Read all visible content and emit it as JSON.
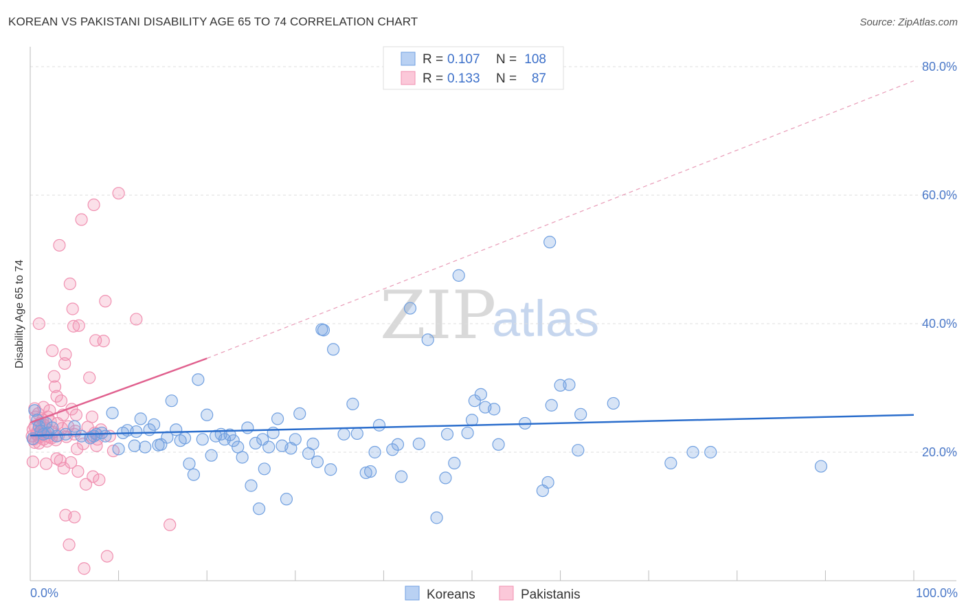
{
  "title": "KOREAN VS PAKISTANI DISABILITY AGE 65 TO 74 CORRELATION CHART",
  "source": "Source: ZipAtlas.com",
  "watermark": {
    "zip": "ZIP",
    "atlas": "atlas"
  },
  "chart_data": {
    "type": "scatter",
    "ylabel": "Disability Age 65 to 74",
    "xlim": [
      0,
      100
    ],
    "ylim": [
      0,
      83
    ],
    "x_tick_labels": [
      "0.0%",
      "100.0%"
    ],
    "y_ticks": [
      {
        "value": 20,
        "label": "20.0%"
      },
      {
        "value": 40,
        "label": "40.0%"
      },
      {
        "value": 60,
        "label": "60.0%"
      },
      {
        "value": 80,
        "label": "80.0%"
      }
    ],
    "legend": [
      {
        "r_label": "R =",
        "r_value": "0.107",
        "n_label": "N =",
        "n_value": "108"
      },
      {
        "r_label": "R =",
        "r_value": "0.133",
        "n_label": "N =",
        "n_value": "87"
      }
    ],
    "colors": {
      "koreans": "#6f9fe0",
      "pakistanis": "#f08fb0",
      "korean_line": "#2a6dcc",
      "pakistani_line": "#e0608e"
    },
    "series": [
      {
        "name": "Koreans",
        "trend": {
          "x0": 0,
          "y0": 22.6,
          "x1": 100,
          "y1": 25.8
        },
        "points": [
          [
            0.5,
            26.5
          ],
          [
            0.8,
            25
          ],
          [
            1,
            24
          ],
          [
            1.2,
            23.3
          ],
          [
            1.5,
            22.8
          ],
          [
            1.8,
            24.5
          ],
          [
            2,
            23
          ],
          [
            2.5,
            23.8
          ],
          [
            3,
            22.5
          ],
          [
            4,
            22.8
          ],
          [
            5,
            24
          ],
          [
            5.8,
            22.5
          ],
          [
            6.8,
            22.2
          ],
          [
            7.2,
            22.5
          ],
          [
            7.5,
            22.8
          ],
          [
            8.1,
            23
          ],
          [
            8.5,
            22.5
          ],
          [
            9.3,
            26.1
          ],
          [
            10,
            20.5
          ],
          [
            10.5,
            23
          ],
          [
            11,
            23.4
          ],
          [
            11.8,
            21
          ],
          [
            12,
            23.2
          ],
          [
            12.5,
            25.2
          ],
          [
            13,
            20.8
          ],
          [
            13.5,
            23.5
          ],
          [
            14,
            24.3
          ],
          [
            14.5,
            21.1
          ],
          [
            14.8,
            21.2
          ],
          [
            15.5,
            22.3
          ],
          [
            16,
            28
          ],
          [
            16.5,
            23.5
          ],
          [
            17,
            21.8
          ],
          [
            17.5,
            22.2
          ],
          [
            18,
            18.2
          ],
          [
            18.5,
            16.5
          ],
          [
            19,
            31.3
          ],
          [
            19.5,
            22
          ],
          [
            20,
            25.8
          ],
          [
            20.5,
            19.5
          ],
          [
            21,
            22.5
          ],
          [
            21.6,
            22.8
          ],
          [
            22,
            22
          ],
          [
            22.6,
            22.7
          ],
          [
            23,
            21.8
          ],
          [
            23.5,
            20.8
          ],
          [
            24,
            19.2
          ],
          [
            24.6,
            23.8
          ],
          [
            25,
            14.8
          ],
          [
            25.5,
            21.4
          ],
          [
            25.9,
            11.2
          ],
          [
            26.3,
            22
          ],
          [
            26.5,
            17.4
          ],
          [
            27,
            20.8
          ],
          [
            27.5,
            23
          ],
          [
            28,
            25.2
          ],
          [
            28.5,
            21
          ],
          [
            29,
            12.7
          ],
          [
            29.5,
            20.6
          ],
          [
            30,
            22
          ],
          [
            30.5,
            26
          ],
          [
            31.5,
            19.8
          ],
          [
            32,
            21.3
          ],
          [
            32.5,
            18.5
          ],
          [
            33,
            39.1
          ],
          [
            33.2,
            39
          ],
          [
            34,
            17.3
          ],
          [
            34.3,
            36
          ],
          [
            35.5,
            22.8
          ],
          [
            36.5,
            27.5
          ],
          [
            37,
            22.9
          ],
          [
            38,
            16.8
          ],
          [
            38.5,
            17
          ],
          [
            39,
            20
          ],
          [
            39.5,
            24.2
          ],
          [
            41,
            20.4
          ],
          [
            41.6,
            21.2
          ],
          [
            42,
            16.2
          ],
          [
            43,
            42.4
          ],
          [
            44,
            21.3
          ],
          [
            45,
            37.5
          ],
          [
            46,
            9.8
          ],
          [
            47,
            16
          ],
          [
            47.2,
            22.8
          ],
          [
            48,
            18.3
          ],
          [
            48.5,
            47.5
          ],
          [
            49.5,
            23
          ],
          [
            50,
            25
          ],
          [
            50.3,
            28
          ],
          [
            51,
            29
          ],
          [
            51.5,
            27
          ],
          [
            52.5,
            26.7
          ],
          [
            53,
            21.2
          ],
          [
            56,
            24.5
          ],
          [
            58,
            14
          ],
          [
            58.6,
            15.3
          ],
          [
            58.8,
            52.7
          ],
          [
            59,
            27.3
          ],
          [
            60,
            30.4
          ],
          [
            61,
            30.5
          ],
          [
            62,
            20.3
          ],
          [
            62.3,
            25.9
          ],
          [
            66,
            27.6
          ],
          [
            72.5,
            18.3
          ],
          [
            75,
            20
          ],
          [
            77,
            20
          ],
          [
            89.5,
            17.8
          ],
          [
            0.3,
            22.1
          ]
        ]
      },
      {
        "name": "Pakistanis",
        "trend": {
          "x0": 0,
          "y0": 24.6,
          "x1": 20,
          "y1": 34.6
        },
        "extension": {
          "x0": 20,
          "y0": 34.6,
          "x1": 100,
          "y1": 77.8
        },
        "points": [
          [
            0.2,
            22.5
          ],
          [
            0.3,
            23.5
          ],
          [
            0.4,
            22
          ],
          [
            0.5,
            24
          ],
          [
            0.5,
            21.5
          ],
          [
            0.6,
            25.5
          ],
          [
            0.7,
            22.8
          ],
          [
            0.8,
            23.2
          ],
          [
            0.9,
            26
          ],
          [
            1,
            22.3
          ],
          [
            1,
            21.4
          ],
          [
            1.1,
            24.5
          ],
          [
            1.2,
            22.7
          ],
          [
            1.3,
            23.8
          ],
          [
            1.4,
            25
          ],
          [
            1.5,
            22
          ],
          [
            1.5,
            27
          ],
          [
            1.6,
            24.2
          ],
          [
            1.7,
            23
          ],
          [
            1.8,
            18.2
          ],
          [
            1.9,
            21.7
          ],
          [
            2,
            23.5
          ],
          [
            2,
            25.5
          ],
          [
            2.1,
            22.4
          ],
          [
            2.2,
            26.5
          ],
          [
            2.3,
            24.8
          ],
          [
            2.4,
            22.2
          ],
          [
            2.5,
            35.8
          ],
          [
            2.6,
            23.1
          ],
          [
            2.7,
            31.8
          ],
          [
            2.8,
            30.2
          ],
          [
            2.9,
            21.9
          ],
          [
            3,
            28.7
          ],
          [
            3,
            19
          ],
          [
            3.1,
            24.5
          ],
          [
            3.2,
            22.6
          ],
          [
            3.3,
            52.2
          ],
          [
            3.4,
            18.7
          ],
          [
            3.5,
            28
          ],
          [
            3.6,
            23.7
          ],
          [
            3.7,
            25.8
          ],
          [
            3.8,
            17.5
          ],
          [
            3.9,
            33.8
          ],
          [
            4,
            35.2
          ],
          [
            4,
            10.2
          ],
          [
            4.1,
            22.4
          ],
          [
            4.3,
            24
          ],
          [
            4.4,
            5.6
          ],
          [
            4.5,
            46.2
          ],
          [
            4.6,
            18.4
          ],
          [
            4.7,
            26.7
          ],
          [
            4.8,
            42.3
          ],
          [
            4.9,
            39.6
          ],
          [
            5,
            22.8
          ],
          [
            5,
            9.9
          ],
          [
            5.1,
            23.3
          ],
          [
            5.2,
            25.8
          ],
          [
            5.3,
            20.5
          ],
          [
            5.4,
            17
          ],
          [
            5.5,
            39.7
          ],
          [
            5.8,
            56.2
          ],
          [
            6,
            21.3
          ],
          [
            6.1,
            1.9
          ],
          [
            6.3,
            15
          ],
          [
            6.5,
            23.9
          ],
          [
            6.7,
            31.6
          ],
          [
            6.9,
            22.4
          ],
          [
            7,
            25.5
          ],
          [
            7.1,
            16.2
          ],
          [
            7.2,
            58.5
          ],
          [
            7.3,
            23
          ],
          [
            7.4,
            37.4
          ],
          [
            7.5,
            21
          ],
          [
            7.6,
            22
          ],
          [
            7.8,
            15.7
          ],
          [
            8,
            23.5
          ],
          [
            8.3,
            37.3
          ],
          [
            8.5,
            43.5
          ],
          [
            8.7,
            3.8
          ],
          [
            9,
            22.5
          ],
          [
            9.4,
            20.2
          ],
          [
            10,
            60.3
          ],
          [
            12,
            40.7
          ],
          [
            15.8,
            8.7
          ],
          [
            1,
            40
          ],
          [
            0.5,
            26.8
          ],
          [
            0.3,
            18.5
          ]
        ]
      }
    ],
    "bottom_legend": [
      "Koreans",
      "Pakistanis"
    ]
  }
}
